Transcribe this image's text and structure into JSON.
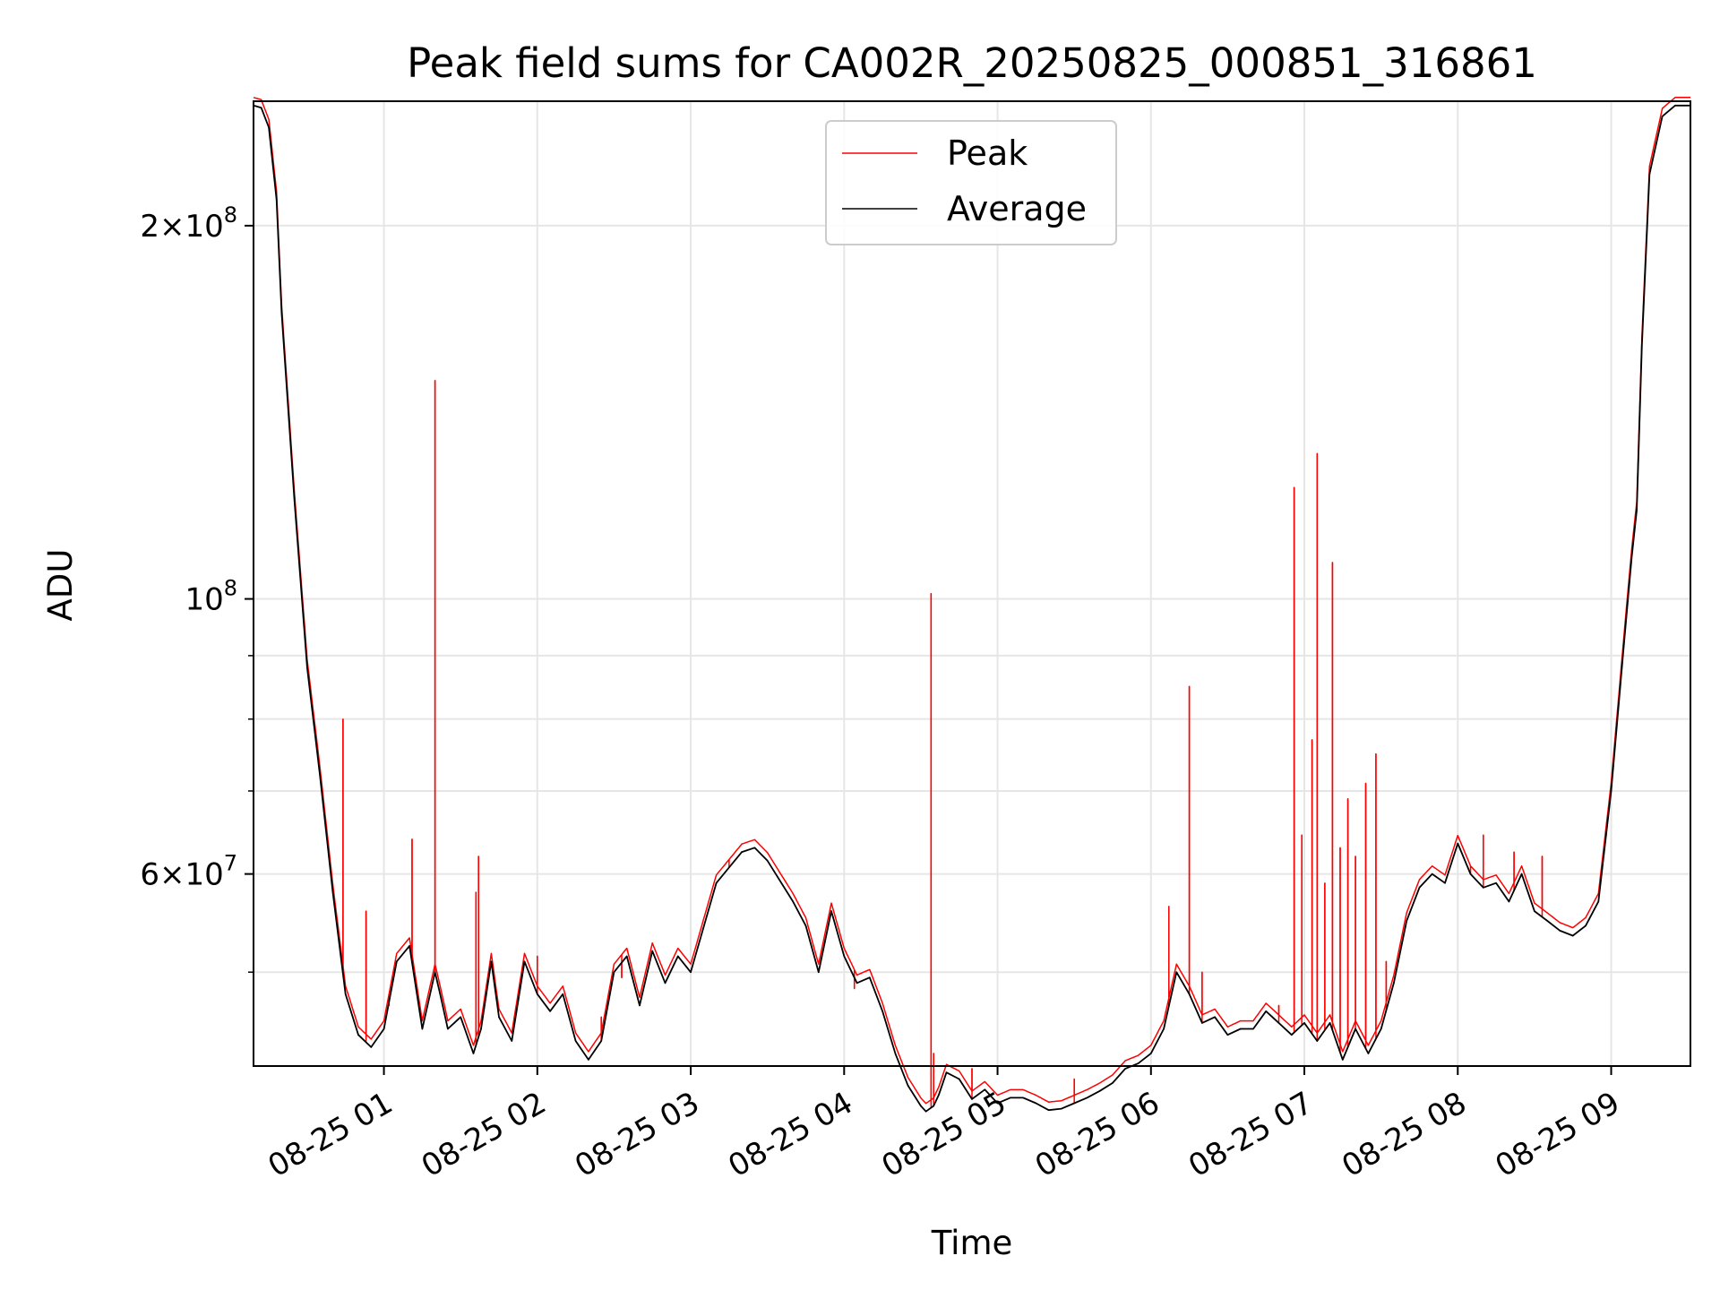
{
  "chart_data": {
    "type": "line",
    "title": "Peak field sums for CA002R_20250825_000851_316861",
    "xlabel": "Time",
    "ylabel": "ADU",
    "y_scale": "log",
    "ylim": [
      42000000,
      252000000
    ],
    "xlim": [
      "2025-08-25 00:09",
      "2025-08-25 09:31"
    ],
    "x_ticks": [
      "08-25 01",
      "08-25 02",
      "08-25 03",
      "08-25 04",
      "08-25 05",
      "08-25 06",
      "08-25 07",
      "08-25 08",
      "08-25 09"
    ],
    "y_ticks": [
      {
        "value": 60000000,
        "mantissa": "6",
        "exponent": "7"
      },
      {
        "value": 100000000,
        "mantissa": "",
        "exponent": "8"
      },
      {
        "value": 200000000,
        "mantissa": "2",
        "exponent": "8"
      }
    ],
    "grid": true,
    "legend": {
      "placement": "top-center",
      "entries": [
        "Peak",
        "Average"
      ]
    },
    "colors": {
      "peak": "#ff0000",
      "average": "#000000",
      "grid": "#e6e6e6"
    },
    "series": [
      {
        "name": "Average",
        "color": "#000000",
        "x": [
          "00:09",
          "00:12",
          "00:15",
          "00:18",
          "00:20",
          "00:25",
          "00:30",
          "00:35",
          "00:40",
          "00:45",
          "00:50",
          "00:55",
          "01:00",
          "01:05",
          "01:10",
          "01:15",
          "01:20",
          "01:22",
          "01:25",
          "01:30",
          "01:35",
          "01:38",
          "01:42",
          "01:45",
          "01:50",
          "01:55",
          "02:00",
          "02:05",
          "02:10",
          "02:15",
          "02:20",
          "02:25",
          "02:30",
          "02:35",
          "02:40",
          "02:45",
          "02:50",
          "02:55",
          "03:00",
          "03:10",
          "03:20",
          "03:25",
          "03:30",
          "03:40",
          "03:45",
          "03:50",
          "03:55",
          "04:00",
          "04:05",
          "04:10",
          "04:15",
          "04:20",
          "04:25",
          "04:30",
          "04:32",
          "04:35",
          "04:37",
          "04:40",
          "04:45",
          "04:50",
          "04:55",
          "05:00",
          "05:05",
          "05:10",
          "05:15",
          "05:20",
          "05:25",
          "05:30",
          "05:35",
          "05:40",
          "05:45",
          "05:50",
          "05:55",
          "06:00",
          "06:05",
          "06:10",
          "06:15",
          "06:20",
          "06:25",
          "06:30",
          "06:35",
          "06:40",
          "06:45",
          "06:50",
          "06:55",
          "07:00",
          "07:05",
          "07:10",
          "07:15",
          "07:20",
          "07:25",
          "07:30",
          "07:35",
          "07:40",
          "07:45",
          "07:50",
          "07:55",
          "08:00",
          "08:05",
          "08:10",
          "08:15",
          "08:20",
          "08:25",
          "08:30",
          "08:35",
          "08:40",
          "08:45",
          "08:50",
          "08:55",
          "09:00",
          "09:05",
          "09:08",
          "09:10",
          "09:12",
          "09:15",
          "09:20",
          "09:25",
          "09:31"
        ],
        "values": [
          250000000,
          249000000,
          240000000,
          210000000,
          170000000,
          120000000,
          88000000,
          72000000,
          58000000,
          48000000,
          44500000,
          43500000,
          45000000,
          51000000,
          52500000,
          45000000,
          50000000,
          48000000,
          45000000,
          46000000,
          43000000,
          45000000,
          51000000,
          46000000,
          44000000,
          51000000,
          48000000,
          46500000,
          48000000,
          44000000,
          42500000,
          44000000,
          50000000,
          51500000,
          47000000,
          52000000,
          49000000,
          51500000,
          50000000,
          59000000,
          62500000,
          63000000,
          61500000,
          57000000,
          54500000,
          50000000,
          56000000,
          51500000,
          49000000,
          49500000,
          46500000,
          43000000,
          40500000,
          39000000,
          38600000,
          39000000,
          39800000,
          41500000,
          41000000,
          39500000,
          40200000,
          39200000,
          39600000,
          39600000,
          39200000,
          38700000,
          38800000,
          39200000,
          39600000,
          40100000,
          40700000,
          41800000,
          42200000,
          43000000,
          45000000,
          50000000,
          48000000,
          45500000,
          46000000,
          44500000,
          45000000,
          45000000,
          46500000,
          45500000,
          44500000,
          45500000,
          44000000,
          45500000,
          42500000,
          45000000,
          43000000,
          45000000,
          49000000,
          55000000,
          58500000,
          60000000,
          59000000,
          63500000,
          60000000,
          58500000,
          59000000,
          57000000,
          60000000,
          56000000,
          55000000,
          54000000,
          53500000,
          54500000,
          57000000,
          70000000,
          92000000,
          108000000,
          118000000,
          160000000,
          220000000,
          245000000,
          250000000,
          250000000
        ]
      },
      {
        "name": "Peak",
        "color": "#ff0000",
        "spikes": [
          {
            "x": "00:44",
            "value": 80000000
          },
          {
            "x": "00:53",
            "value": 56000000
          },
          {
            "x": "01:02",
            "value": 47000000
          },
          {
            "x": "01:11",
            "value": 64000000
          },
          {
            "x": "01:20",
            "value": 150000000
          },
          {
            "x": "01:36",
            "value": 58000000
          },
          {
            "x": "01:37",
            "value": 62000000
          },
          {
            "x": "02:00",
            "value": 51500000
          },
          {
            "x": "02:25",
            "value": 46000000
          },
          {
            "x": "02:33",
            "value": 49500000
          },
          {
            "x": "03:15",
            "value": 61500000
          },
          {
            "x": "04:04",
            "value": 48500000
          },
          {
            "x": "04:34",
            "value": 101000000
          },
          {
            "x": "04:35",
            "value": 43000000
          },
          {
            "x": "04:50",
            "value": 41800000
          },
          {
            "x": "05:30",
            "value": 41000000
          },
          {
            "x": "06:07",
            "value": 56500000
          },
          {
            "x": "06:15",
            "value": 85000000
          },
          {
            "x": "06:20",
            "value": 50000000
          },
          {
            "x": "06:50",
            "value": 47000000
          },
          {
            "x": "06:56",
            "value": 123000000
          },
          {
            "x": "06:59",
            "value": 64500000
          },
          {
            "x": "07:03",
            "value": 77000000
          },
          {
            "x": "07:05",
            "value": 131000000
          },
          {
            "x": "07:08",
            "value": 59000000
          },
          {
            "x": "07:11",
            "value": 107000000
          },
          {
            "x": "07:14",
            "value": 63000000
          },
          {
            "x": "07:17",
            "value": 69000000
          },
          {
            "x": "07:20",
            "value": 62000000
          },
          {
            "x": "07:24",
            "value": 71000000
          },
          {
            "x": "07:28",
            "value": 75000000
          },
          {
            "x": "07:32",
            "value": 51000000
          },
          {
            "x": "08:05",
            "value": 60500000
          },
          {
            "x": "08:10",
            "value": 64500000
          },
          {
            "x": "08:22",
            "value": 62500000
          },
          {
            "x": "08:33",
            "value": 62000000
          }
        ]
      }
    ]
  }
}
